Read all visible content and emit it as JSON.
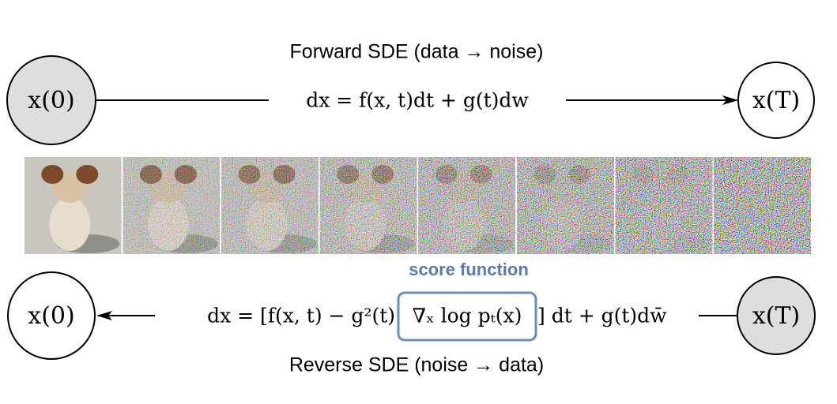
{
  "header": {
    "forward_title": "Forward SDE (data → noise)",
    "reverse_title": "Reverse SDE (noise → data)"
  },
  "nodes": [
    {
      "label": "x(0)"
    },
    {
      "label": "x(T)"
    },
    {
      "label": "x(0)"
    },
    {
      "label": "x(T)"
    }
  ],
  "forward_equation": "dx = f(x, t)dt + g(t)dw",
  "reverse_equation": {
    "left": "dx = [f(x, t) − g²(t)",
    "score": "∇ₓ log pₜ(x)",
    "right": "] dt + g(t)dw̄"
  },
  "score_label": "score function"
}
